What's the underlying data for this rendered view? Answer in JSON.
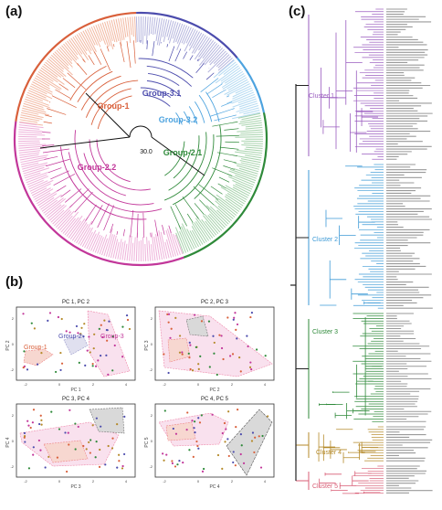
{
  "figure": {
    "panel_a": {
      "label": "(a)",
      "scale_value": "30.0",
      "groups": [
        {
          "name": "Group-1",
          "color": "#d9603b"
        },
        {
          "name": "Group-2.2",
          "color": "#c2379a"
        },
        {
          "name": "Group-3.1",
          "color": "#4c4cad"
        },
        {
          "name": "Group-3.2",
          "color": "#4da3df"
        },
        {
          "name": "Group-2.1",
          "color": "#2f8a3a"
        }
      ]
    },
    "panel_b": {
      "label": "(b)",
      "plots": [
        {
          "title": "PC 1, PC 2",
          "xlabel": "PC 1",
          "ylabel": "PC 2",
          "annotations": [
            "Group-1",
            "Group-2",
            "Group-3"
          ],
          "xticks": [
            "-2",
            "0",
            "2",
            "4"
          ],
          "yticks": [
            "-2",
            "0",
            "2"
          ]
        },
        {
          "title": "PC 2, PC 3",
          "xlabel": "PC 2",
          "ylabel": "PC 3",
          "annotations": [],
          "xticks": [
            "-2",
            "0",
            "2",
            "4"
          ],
          "yticks": [
            "-2",
            "0",
            "2"
          ]
        },
        {
          "title": "PC 3, PC 4",
          "xlabel": "PC 3",
          "ylabel": "PC 4",
          "annotations": [],
          "xticks": [
            "-2",
            "0",
            "2",
            "4"
          ],
          "yticks": [
            "-2",
            "0",
            "2"
          ]
        },
        {
          "title": "PC 4, PC 5",
          "xlabel": "PC 4",
          "ylabel": "PC 5",
          "annotations": [],
          "xticks": [
            "-2",
            "0",
            "2",
            "4"
          ],
          "yticks": [
            "-2",
            "0",
            "2"
          ]
        }
      ]
    },
    "panel_c": {
      "label": "(c)",
      "clusters": [
        {
          "name": "Cluster 1",
          "color": "#9a5cbf"
        },
        {
          "name": "Cluster 2",
          "color": "#3d9ad6"
        },
        {
          "name": "Cluster 3",
          "color": "#2f8a3a"
        },
        {
          "name": "Cluster 4",
          "color": "#b58a2a"
        },
        {
          "name": "Cluster 5",
          "color": "#d85c74"
        }
      ]
    }
  }
}
